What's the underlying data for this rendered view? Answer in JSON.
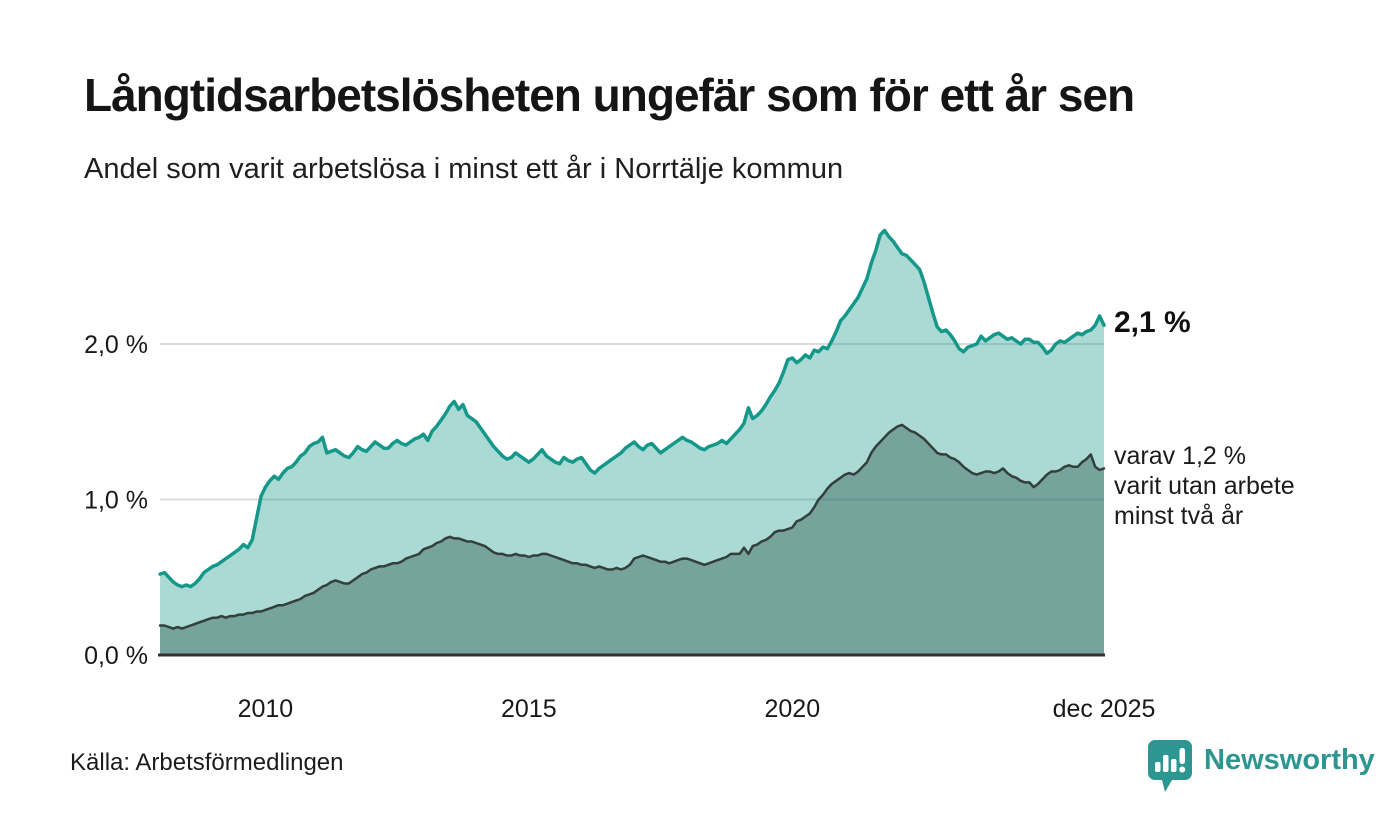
{
  "header": {
    "title": "Långtidsarbetslösheten ungefär som för ett år sen",
    "subtitle": "Andel som varit arbetslösa i minst ett år i Norrtälje kommun"
  },
  "annotations": {
    "end_value_label": "2,1 %",
    "side_note": "varav 1,2 %\nvarit utan arbete\nminst två år"
  },
  "footer": {
    "source": "Källa: Arbetsförmedlingen",
    "brand": "Newsworthy",
    "brand_color": "#2e9690"
  },
  "chart_data": {
    "type": "area",
    "title": "Långtidsarbetslösheten ungefär som för ett år sen",
    "subtitle": "Andel som varit arbetslösa i minst ett år i Norrtälje kommun",
    "unit": "%",
    "resolution": "monthly",
    "x_start": "2008-01",
    "x_end": "2025-12",
    "ylim": [
      0,
      2.85
    ],
    "grid": "horizontal",
    "grid_color": "#d9dcde",
    "baseline_color": "#303030",
    "y_ticks": [
      {
        "value": 2.0,
        "label": "2,0 %"
      },
      {
        "value": 1.0,
        "label": "1,0 %"
      },
      {
        "value": 0.0,
        "label": "0,0 %"
      }
    ],
    "x_ticks": [
      {
        "month_index": 24,
        "label": "2010"
      },
      {
        "month_index": 84,
        "label": "2015"
      },
      {
        "month_index": 144,
        "label": "2020"
      },
      {
        "month_index": 215,
        "label": "dec 2025"
      }
    ],
    "series": [
      {
        "name": "Arbetslösa minst ett år",
        "end_value": 2.1,
        "line_color": "#15988a",
        "line_width": 3.5,
        "fill_color": "rgba(21,152,138,0.36)",
        "values": [
          0.52,
          0.53,
          0.5,
          0.47,
          0.45,
          0.44,
          0.45,
          0.44,
          0.46,
          0.49,
          0.53,
          0.55,
          0.57,
          0.58,
          0.6,
          0.62,
          0.64,
          0.66,
          0.68,
          0.71,
          0.69,
          0.74,
          0.88,
          1.02,
          1.08,
          1.12,
          1.15,
          1.13,
          1.17,
          1.2,
          1.21,
          1.24,
          1.28,
          1.3,
          1.34,
          1.36,
          1.37,
          1.4,
          1.3,
          1.31,
          1.32,
          1.3,
          1.28,
          1.27,
          1.3,
          1.34,
          1.32,
          1.31,
          1.34,
          1.37,
          1.35,
          1.33,
          1.33,
          1.36,
          1.38,
          1.36,
          1.35,
          1.37,
          1.39,
          1.4,
          1.42,
          1.38,
          1.44,
          1.47,
          1.51,
          1.55,
          1.6,
          1.63,
          1.58,
          1.61,
          1.54,
          1.52,
          1.5,
          1.46,
          1.42,
          1.38,
          1.34,
          1.31,
          1.28,
          1.26,
          1.27,
          1.3,
          1.28,
          1.26,
          1.24,
          1.26,
          1.29,
          1.32,
          1.28,
          1.26,
          1.24,
          1.23,
          1.27,
          1.25,
          1.24,
          1.26,
          1.27,
          1.23,
          1.19,
          1.17,
          1.2,
          1.22,
          1.24,
          1.26,
          1.28,
          1.3,
          1.33,
          1.35,
          1.37,
          1.34,
          1.32,
          1.35,
          1.36,
          1.33,
          1.3,
          1.32,
          1.34,
          1.36,
          1.38,
          1.4,
          1.38,
          1.37,
          1.35,
          1.33,
          1.32,
          1.34,
          1.35,
          1.36,
          1.38,
          1.36,
          1.39,
          1.42,
          1.45,
          1.49,
          1.59,
          1.52,
          1.54,
          1.57,
          1.61,
          1.66,
          1.7,
          1.75,
          1.82,
          1.9,
          1.91,
          1.88,
          1.9,
          1.93,
          1.91,
          1.96,
          1.95,
          1.98,
          1.97,
          2.02,
          2.08,
          2.15,
          2.18,
          2.22,
          2.26,
          2.3,
          2.36,
          2.42,
          2.52,
          2.6,
          2.7,
          2.73,
          2.69,
          2.66,
          2.62,
          2.58,
          2.57,
          2.54,
          2.51,
          2.48,
          2.4,
          2.3,
          2.2,
          2.11,
          2.08,
          2.09,
          2.06,
          2.02,
          1.97,
          1.95,
          1.98,
          1.99,
          2.0,
          2.05,
          2.02,
          2.04,
          2.06,
          2.07,
          2.05,
          2.03,
          2.04,
          2.02,
          2.0,
          2.03,
          2.03,
          2.01,
          2.01,
          1.98,
          1.94,
          1.96,
          2.0,
          2.02,
          2.01,
          2.03,
          2.05,
          2.07,
          2.06,
          2.08,
          2.09,
          2.12,
          2.18,
          2.12
        ]
      },
      {
        "name": "varav utan arbete minst två år",
        "end_value": 1.2,
        "line_color": "#333f3b",
        "line_width": 2.5,
        "fill_color": "rgba(45,88,78,0.42)",
        "values": [
          0.19,
          0.19,
          0.18,
          0.17,
          0.18,
          0.17,
          0.18,
          0.19,
          0.2,
          0.21,
          0.22,
          0.23,
          0.24,
          0.24,
          0.25,
          0.24,
          0.25,
          0.25,
          0.26,
          0.26,
          0.27,
          0.27,
          0.28,
          0.28,
          0.29,
          0.3,
          0.31,
          0.32,
          0.32,
          0.33,
          0.34,
          0.35,
          0.36,
          0.38,
          0.39,
          0.4,
          0.42,
          0.44,
          0.45,
          0.47,
          0.48,
          0.47,
          0.46,
          0.46,
          0.48,
          0.5,
          0.52,
          0.53,
          0.55,
          0.56,
          0.57,
          0.57,
          0.58,
          0.59,
          0.59,
          0.6,
          0.62,
          0.63,
          0.64,
          0.65,
          0.68,
          0.69,
          0.7,
          0.72,
          0.73,
          0.75,
          0.76,
          0.75,
          0.75,
          0.74,
          0.73,
          0.73,
          0.72,
          0.71,
          0.7,
          0.68,
          0.66,
          0.65,
          0.65,
          0.64,
          0.64,
          0.65,
          0.64,
          0.64,
          0.63,
          0.64,
          0.64,
          0.65,
          0.65,
          0.64,
          0.63,
          0.62,
          0.61,
          0.6,
          0.59,
          0.59,
          0.58,
          0.58,
          0.57,
          0.56,
          0.57,
          0.56,
          0.55,
          0.55,
          0.56,
          0.55,
          0.56,
          0.58,
          0.62,
          0.63,
          0.64,
          0.63,
          0.62,
          0.61,
          0.6,
          0.6,
          0.59,
          0.6,
          0.61,
          0.62,
          0.62,
          0.61,
          0.6,
          0.59,
          0.58,
          0.59,
          0.6,
          0.61,
          0.62,
          0.63,
          0.65,
          0.65,
          0.65,
          0.69,
          0.65,
          0.7,
          0.71,
          0.73,
          0.74,
          0.76,
          0.79,
          0.8,
          0.8,
          0.81,
          0.82,
          0.86,
          0.87,
          0.89,
          0.91,
          0.95,
          1.0,
          1.03,
          1.07,
          1.1,
          1.12,
          1.14,
          1.16,
          1.17,
          1.16,
          1.18,
          1.21,
          1.24,
          1.3,
          1.34,
          1.37,
          1.4,
          1.43,
          1.45,
          1.47,
          1.48,
          1.46,
          1.44,
          1.43,
          1.41,
          1.39,
          1.36,
          1.33,
          1.3,
          1.29,
          1.29,
          1.27,
          1.26,
          1.24,
          1.21,
          1.19,
          1.17,
          1.16,
          1.17,
          1.18,
          1.18,
          1.17,
          1.18,
          1.2,
          1.17,
          1.15,
          1.14,
          1.12,
          1.11,
          1.11,
          1.08,
          1.1,
          1.13,
          1.16,
          1.18,
          1.18,
          1.19,
          1.21,
          1.22,
          1.21,
          1.21,
          1.24,
          1.26,
          1.29,
          1.21,
          1.19,
          1.2
        ]
      }
    ]
  }
}
